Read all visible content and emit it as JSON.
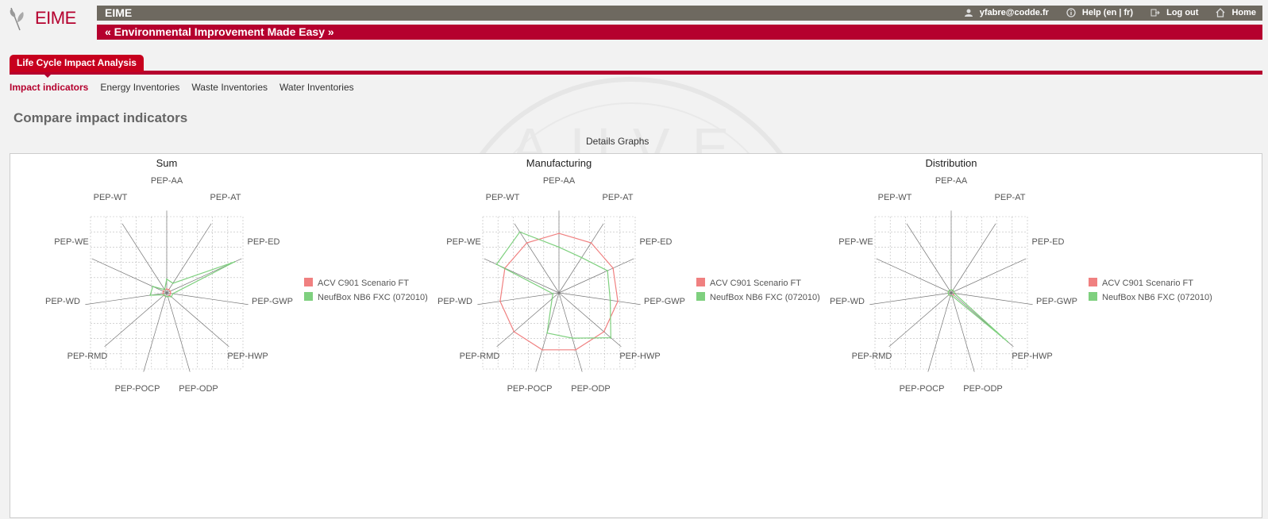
{
  "app": {
    "logo_text": "EIME",
    "title": "EIME",
    "tagline": "« Environmental Improvement Made Easy »"
  },
  "user_links": [
    {
      "label": "yfabre@codde.fr",
      "icon": "user-icon"
    },
    {
      "label": "Help (en | fr)",
      "icon": "info-icon"
    },
    {
      "label": "Log out",
      "icon": "logout-icon"
    },
    {
      "label": "Home",
      "icon": "home-icon"
    }
  ],
  "main_tab": "Life Cycle Impact Analysis",
  "subnav": [
    "Impact indicators",
    "Energy Inventories",
    "Waste Inventories",
    "Water Inventories"
  ],
  "page_title": "Compare impact indicators",
  "details_label": "Details Graphs",
  "watermark_text": "AUVE",
  "colors": {
    "brand": "#b5002e",
    "series_a": "#f08080",
    "series_b": "#7fd07f"
  },
  "chart_data": [
    {
      "type": "radar",
      "title": "Sum",
      "axes": [
        "PEP-AA",
        "PEP-AT",
        "PEP-ED",
        "PEP-GWP",
        "PEP-HWP",
        "PEP-ODP",
        "PEP-POCP",
        "PEP-RMD",
        "PEP-WD",
        "PEP-WE",
        "PEP-WT"
      ],
      "series": [
        {
          "name": "ACV C901 Scenario FT",
          "values": [
            0.05,
            0.05,
            0.05,
            0.05,
            0.05,
            0.05,
            0.05,
            0.05,
            0.05,
            0.05,
            0.05
          ]
        },
        {
          "name": "NeufBox NB6 FXC (072010)",
          "values": [
            0.18,
            0.15,
            0.98,
            0.08,
            0.08,
            0.05,
            0.05,
            0.04,
            0.22,
            0.2,
            0.05
          ]
        }
      ]
    },
    {
      "type": "radar",
      "title": "Manufacturing",
      "axes": [
        "PEP-AA",
        "PEP-AT",
        "PEP-ED",
        "PEP-GWP",
        "PEP-HWP",
        "PEP-ODP",
        "PEP-POCP",
        "PEP-RMD",
        "PEP-WD",
        "PEP-WE",
        "PEP-WT"
      ],
      "series": [
        {
          "name": "ACV C901 Scenario FT",
          "values": [
            0.78,
            0.78,
            0.78,
            0.78,
            0.78,
            0.78,
            0.78,
            0.78,
            0.78,
            0.78,
            0.78
          ]
        },
        {
          "name": "NeufBox NB6 FXC (072010)",
          "values": [
            0.6,
            0.55,
            0.7,
            0.68,
            0.9,
            0.62,
            0.55,
            0.12,
            0.08,
            0.9,
            0.95
          ]
        }
      ]
    },
    {
      "type": "radar",
      "title": "Distribution",
      "axes": [
        "PEP-AA",
        "PEP-AT",
        "PEP-ED",
        "PEP-GWP",
        "PEP-HWP",
        "PEP-ODP",
        "PEP-POCP",
        "PEP-RMD",
        "PEP-WD",
        "PEP-WE",
        "PEP-WT"
      ],
      "series": [
        {
          "name": "ACV C901 Scenario FT",
          "values": [
            0.04,
            0.04,
            0.04,
            0.04,
            0.04,
            0.04,
            0.04,
            0.04,
            0.04,
            0.04,
            0.04
          ]
        },
        {
          "name": "NeufBox NB6 FXC (072010)",
          "values": [
            0.04,
            0.04,
            0.04,
            0.04,
            0.98,
            0.04,
            0.04,
            0.04,
            0.04,
            0.04,
            0.04
          ]
        }
      ]
    }
  ]
}
